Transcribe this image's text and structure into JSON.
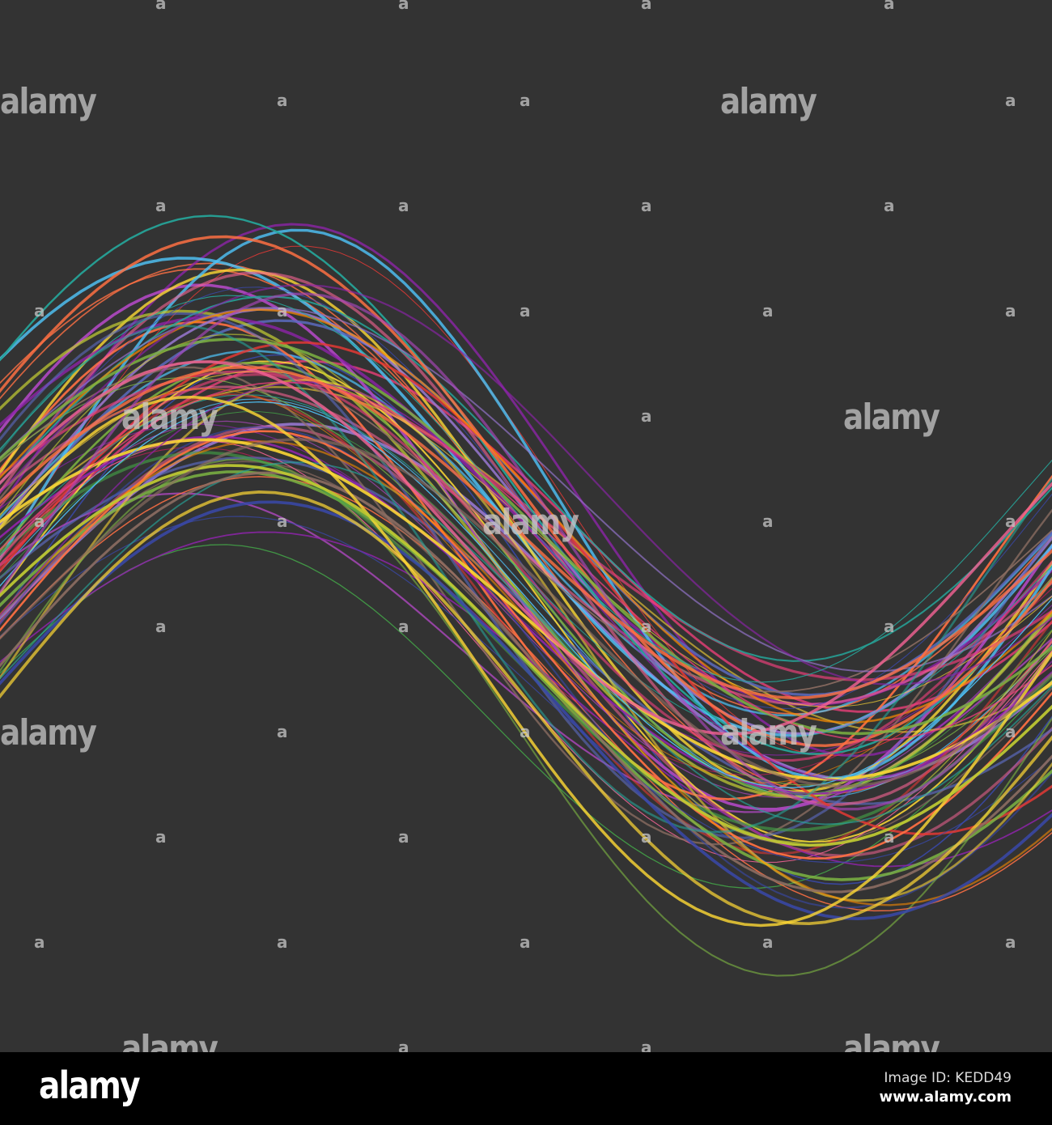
{
  "background_color": "#333333",
  "line_palette": [
    "#e53935",
    "#8e24aa",
    "#d81b60",
    "#3949ab",
    "#43a047",
    "#fdd835",
    "#fb8c00",
    "#26a69a",
    "#5c6bc0",
    "#ec407a",
    "#7cb342",
    "#ab47bc",
    "#f06292",
    "#4fc3f7",
    "#c0ca33",
    "#8d6e63",
    "#ff7043",
    "#9575cd"
  ],
  "watermark": {
    "big_text": "alamy",
    "small_text": "a"
  },
  "footer": {
    "logo": "alamy",
    "image_id": "Image ID: KEDD49",
    "url": "www.alamy.com"
  }
}
